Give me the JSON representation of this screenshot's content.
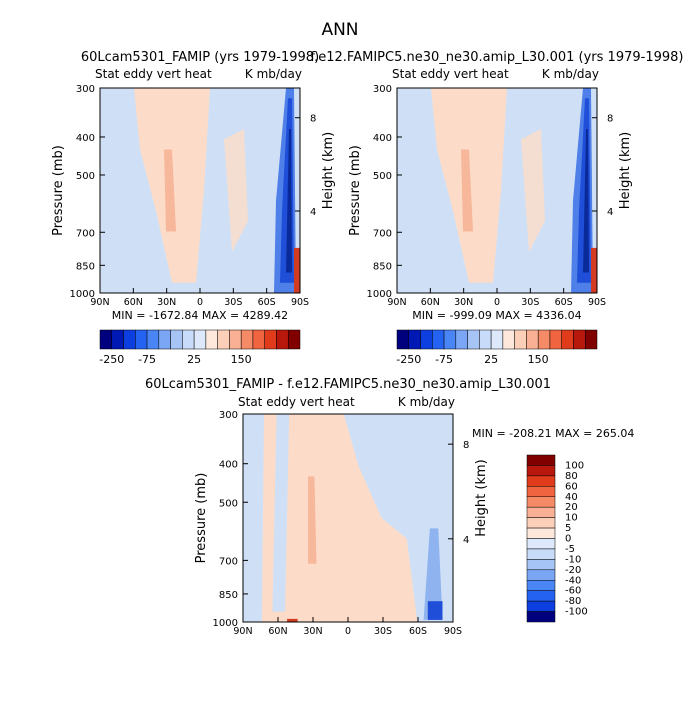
{
  "page_title": "ANN",
  "chart_data": [
    {
      "type": "heatmap",
      "title": "60Lcam5301_FAMIP (yrs 1979-1998)",
      "subtitle_left": "Stat eddy vert heat",
      "subtitle_right": "K mb/day",
      "xlabel": "",
      "ylabel": "Pressure (mb)",
      "y2label": "Height (km)",
      "x_ticks": [
        "90N",
        "60N",
        "30N",
        "0",
        "30S",
        "60S",
        "90S"
      ],
      "y_ticks": [
        "300",
        "400",
        "500",
        "700",
        "850",
        "1000"
      ],
      "y_tick_values": [
        300,
        400,
        500,
        700,
        850,
        1000
      ],
      "y2_ticks": [
        "8",
        "4"
      ],
      "ylim": [
        1000,
        300
      ],
      "stats": "MIN = -1672.84   MAX = 4289.42",
      "colorbar": {
        "orientation": "horizontal",
        "labels": [
          "-250",
          "-75",
          "25",
          "150"
        ],
        "colors": [
          "#00007f",
          "#0019b4",
          "#0d3fe0",
          "#2463f2",
          "#4a85f5",
          "#7aa6f5",
          "#a6c4f5",
          "#c8dbf8",
          "#dde9fa",
          "#fde8db",
          "#fcd0b8",
          "#f9b094",
          "#f58a67",
          "#f0643f",
          "#e03c1c",
          "#b8170c",
          "#800000"
        ]
      },
      "field": {
        "background": "light-blue",
        "features": [
          "pale positive band 40N-20N",
          "strong negative 60S-90S",
          "strong positive near 90S surface"
        ]
      }
    },
    {
      "type": "heatmap",
      "title": "f.e12.FAMIPC5.ne30_ne30.amip_L30.001 (yrs 1979-1998)",
      "subtitle_left": "Stat eddy vert heat",
      "subtitle_right": "K mb/day",
      "xlabel": "",
      "ylabel": "Pressure (mb)",
      "y2label": "Height (km)",
      "x_ticks": [
        "90N",
        "60N",
        "30N",
        "0",
        "30S",
        "60S",
        "90S"
      ],
      "y_ticks": [
        "300",
        "400",
        "500",
        "700",
        "850",
        "1000"
      ],
      "y_tick_values": [
        300,
        400,
        500,
        700,
        850,
        1000
      ],
      "y2_ticks": [
        "8",
        "4"
      ],
      "ylim": [
        1000,
        300
      ],
      "stats": "MIN = -999.09   MAX = 4336.04",
      "colorbar": {
        "orientation": "horizontal",
        "labels": [
          "-250",
          "-75",
          "25",
          "150"
        ],
        "colors": [
          "#00007f",
          "#0019b4",
          "#0d3fe0",
          "#2463f2",
          "#4a85f5",
          "#7aa6f5",
          "#a6c4f5",
          "#c8dbf8",
          "#dde9fa",
          "#fde8db",
          "#fcd0b8",
          "#f9b094",
          "#f58a67",
          "#f0643f",
          "#e03c1c",
          "#b8170c",
          "#800000"
        ]
      },
      "field": {
        "background": "light-blue",
        "features": [
          "pale positive band 40N-20N",
          "strong negative 60S-90S",
          "strong positive near 90S surface"
        ]
      }
    },
    {
      "type": "heatmap",
      "title": "60Lcam5301_FAMIP - f.e12.FAMIPC5.ne30_ne30.amip_L30.001",
      "subtitle_left": "Stat eddy vert heat",
      "subtitle_right": "K mb/day",
      "xlabel": "",
      "ylabel": "Pressure (mb)",
      "y2label": "Height (km)",
      "x_ticks": [
        "90N",
        "60N",
        "30N",
        "0",
        "30S",
        "60S",
        "90S"
      ],
      "y_ticks": [
        "300",
        "400",
        "500",
        "700",
        "850",
        "1000"
      ],
      "y_tick_values": [
        300,
        400,
        500,
        700,
        850,
        1000
      ],
      "y2_ticks": [
        "8",
        "4"
      ],
      "ylim": [
        1000,
        300
      ],
      "stats": "MIN = -208.21   MAX = 265.04",
      "colorbar": {
        "orientation": "vertical",
        "labels": [
          "100",
          "80",
          "60",
          "40",
          "20",
          "10",
          "5",
          "0",
          "-5",
          "-10",
          "-20",
          "-40",
          "-60",
          "-80",
          "-100"
        ],
        "colors": [
          "#800000",
          "#b8170c",
          "#e03c1c",
          "#f0643f",
          "#f58a67",
          "#f9b094",
          "#fcd0b8",
          "#fde8db",
          "#dde9fa",
          "#c8dbf8",
          "#a6c4f5",
          "#7aa6f5",
          "#4a85f5",
          "#2463f2",
          "#0d3fe0",
          "#00007f"
        ]
      },
      "field": {
        "background": "light-peach",
        "features": [
          "light-blue regions near 60N and 20N-60S",
          "weak negative near 90S"
        ]
      }
    }
  ]
}
